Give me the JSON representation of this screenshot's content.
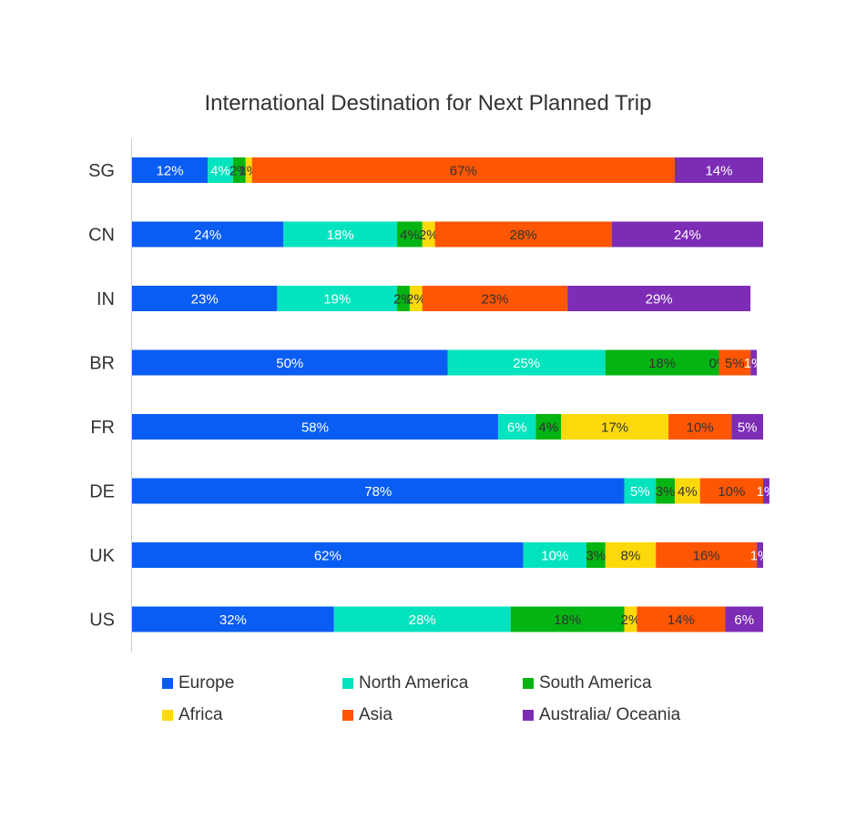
{
  "chart_data": {
    "type": "bar",
    "orientation": "horizontal",
    "stacked": true,
    "title": "International Destination for Next Planned Trip",
    "categories": [
      "SG",
      "CN",
      "IN",
      "BR",
      "FR",
      "DE",
      "UK",
      "US"
    ],
    "series": [
      {
        "name": "Europe",
        "color": "#0a5df2",
        "values": [
          12,
          24,
          23,
          50,
          58,
          78,
          62,
          32
        ],
        "labels": [
          "12%",
          "24%",
          "23%",
          "50%",
          "58%",
          "78%",
          "62%",
          "32%"
        ]
      },
      {
        "name": "North America",
        "color": "#03e3bf",
        "values": [
          4,
          18,
          19,
          25,
          6,
          5,
          10,
          28
        ],
        "labels": [
          "4%",
          "18%",
          "19%",
          "25%",
          "6%",
          "5%",
          "10%",
          "28%"
        ]
      },
      {
        "name": "South America",
        "color": "#04b412",
        "values": [
          2,
          4,
          2,
          18,
          4,
          3,
          3,
          18
        ],
        "labels": [
          "2%",
          "4%",
          "2%",
          "18%",
          "4%",
          "3%",
          "3%",
          "18%"
        ]
      },
      {
        "name": "Africa",
        "color": "#fcd90b",
        "values": [
          1,
          2,
          2,
          0,
          17,
          4,
          8,
          2
        ],
        "labels": [
          "1%",
          "2%",
          "2%",
          "0%",
          "17%",
          "4%",
          "8%",
          "2%"
        ]
      },
      {
        "name": "Asia",
        "color": "#ff5603",
        "values": [
          67,
          28,
          23,
          5,
          10,
          10,
          16,
          14
        ],
        "labels": [
          "67%",
          "28%",
          "23%",
          "5%",
          "10%",
          "10%",
          "16%",
          "14%"
        ]
      },
      {
        "name": "Australia/ Oceania",
        "color": "#7d2db5",
        "values": [
          14,
          24,
          29,
          1,
          5,
          1,
          1,
          6
        ],
        "labels": [
          "14%",
          "24%",
          "29%",
          "1%",
          "5%",
          "1%",
          "1%",
          "6%"
        ]
      }
    ],
    "xlim": [
      0,
      100
    ],
    "grid": false,
    "legend_position": "bottom"
  }
}
